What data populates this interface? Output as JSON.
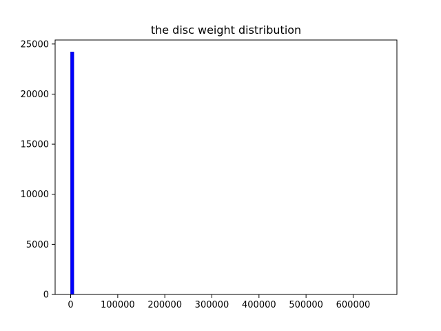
{
  "chart_data": {
    "type": "bar",
    "title": "the disc weight distribution",
    "xlabel": "",
    "ylabel": "",
    "xlim": [
      -33000,
      693000
    ],
    "ylim": [
      0,
      25400
    ],
    "x_ticks": [
      0,
      100000,
      200000,
      300000,
      400000,
      500000,
      600000
    ],
    "y_ticks": [
      0,
      5000,
      10000,
      15000,
      20000,
      25000
    ],
    "grid": false,
    "bar_color": "#0000ff",
    "bar_edge_color": "#0000cd",
    "bins": [
      {
        "x0": 0,
        "x1": 6600,
        "count": 24200
      },
      {
        "x0": 6600,
        "x1": 13200,
        "count": 0
      }
    ]
  }
}
